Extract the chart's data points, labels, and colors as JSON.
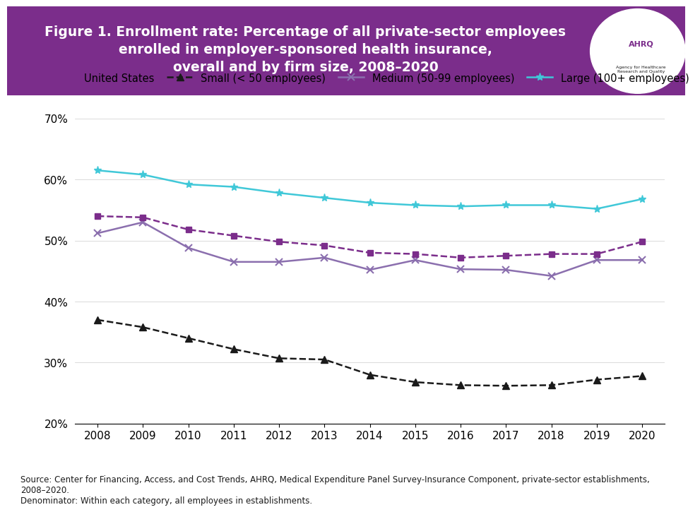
{
  "years": [
    2008,
    2009,
    2010,
    2011,
    2012,
    2013,
    2014,
    2015,
    2016,
    2017,
    2018,
    2019,
    2020
  ],
  "us_overall": [
    0.54,
    0.538,
    0.518,
    0.508,
    0.498,
    0.492,
    0.48,
    0.478,
    0.472,
    0.475,
    0.478,
    0.478,
    0.498
  ],
  "small": [
    0.37,
    0.358,
    0.34,
    0.322,
    0.307,
    0.305,
    0.28,
    0.268,
    0.263,
    0.262,
    0.263,
    0.272,
    0.278
  ],
  "medium": [
    0.512,
    0.53,
    0.488,
    0.465,
    0.465,
    0.472,
    0.452,
    0.468,
    0.453,
    0.452,
    0.442,
    0.468,
    0.468
  ],
  "large": [
    0.615,
    0.608,
    0.592,
    0.588,
    0.578,
    0.57,
    0.562,
    0.558,
    0.556,
    0.558,
    0.558,
    0.552,
    0.568
  ],
  "us_color": "#7B2D8B",
  "small_color": "#1a1a1a",
  "medium_color": "#8B6FAE",
  "large_color": "#40C8D8",
  "header_bg": "#7B2D8B",
  "header_text": "#FFFFFF",
  "title_line1": "Figure 1. Enrollment rate: Percentage of all private-sector employees",
  "title_line2": "enrolled in employer-sponsored health insurance,",
  "title_line3": "overall and by firm size, 2008–2020",
  "legend_labels": [
    "United States",
    "Small (< 50 employees)",
    "Medium (50-99 employees)",
    "Large (100+ employees)"
  ],
  "source_text": "Source: Center for Financing, Access, and Cost Trends, AHRQ, Medical Expenditure Panel Survey-Insurance Component, private-sector establishments,\n2008–2020.\nDenominator: Within each category, all employees in establishments.",
  "ylim_min": 0.2,
  "ylim_max": 0.7,
  "yticks": [
    0.2,
    0.3,
    0.4,
    0.5,
    0.6,
    0.7
  ]
}
